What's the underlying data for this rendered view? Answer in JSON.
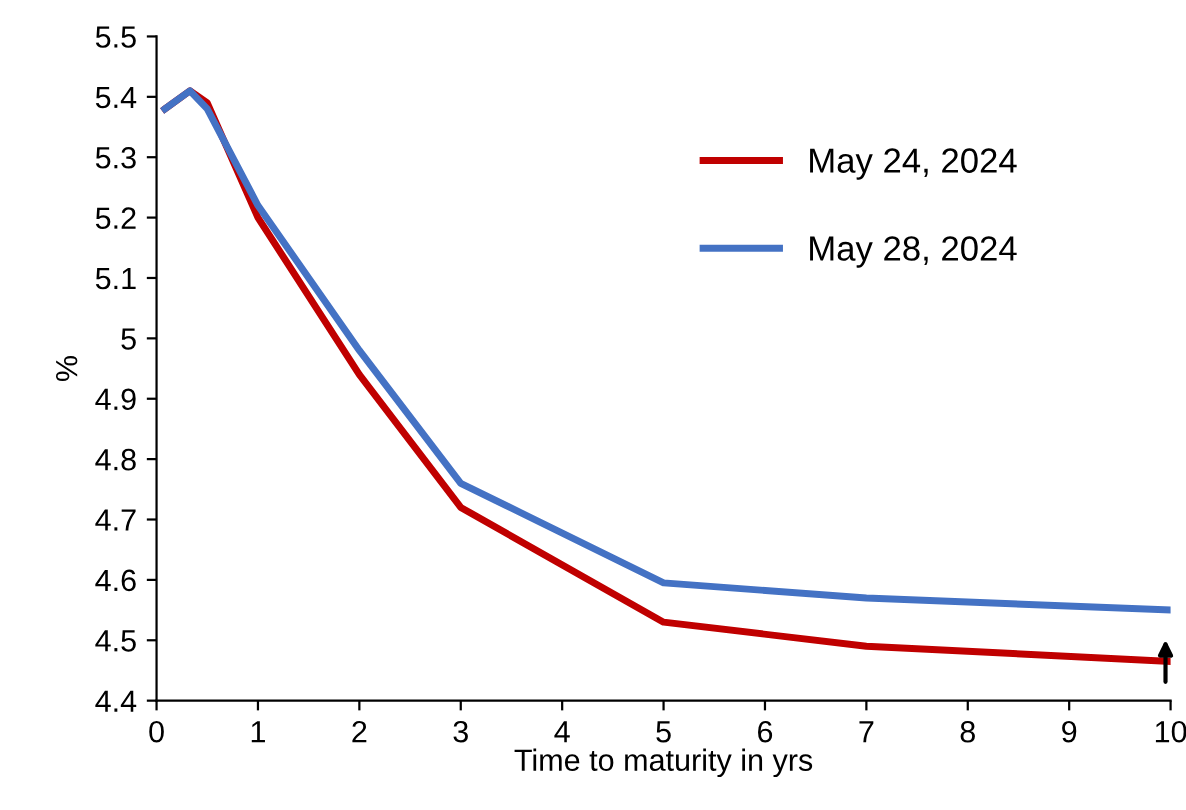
{
  "chart_data": {
    "type": "line",
    "xlabel": "Time to maturity in yrs",
    "ylabel": "%",
    "x": [
      0.083,
      0.33,
      0.5,
      1,
      2,
      3,
      5,
      7,
      10
    ],
    "series": [
      {
        "name": "May 24, 2024",
        "color": "#c00000",
        "values": [
          5.38,
          5.41,
          5.39,
          5.2,
          4.94,
          4.72,
          4.53,
          4.49,
          4.465
        ]
      },
      {
        "name": "May 28, 2024",
        "color": "#4472c4",
        "values": [
          5.38,
          5.41,
          5.38,
          5.22,
          4.98,
          4.76,
          4.595,
          4.57,
          4.55
        ]
      }
    ],
    "xlim": [
      0,
      10
    ],
    "xticks": [
      0,
      1,
      2,
      3,
      4,
      5,
      6,
      7,
      8,
      9,
      10
    ],
    "ylim": [
      4.4,
      5.5
    ],
    "yticks": [
      4.4,
      4.5,
      4.6,
      4.7,
      4.8,
      4.9,
      5,
      5.1,
      5.2,
      5.3,
      5.4,
      5.5
    ],
    "grid": false,
    "legend": "top right",
    "marker": "none",
    "line_style": "solid"
  }
}
